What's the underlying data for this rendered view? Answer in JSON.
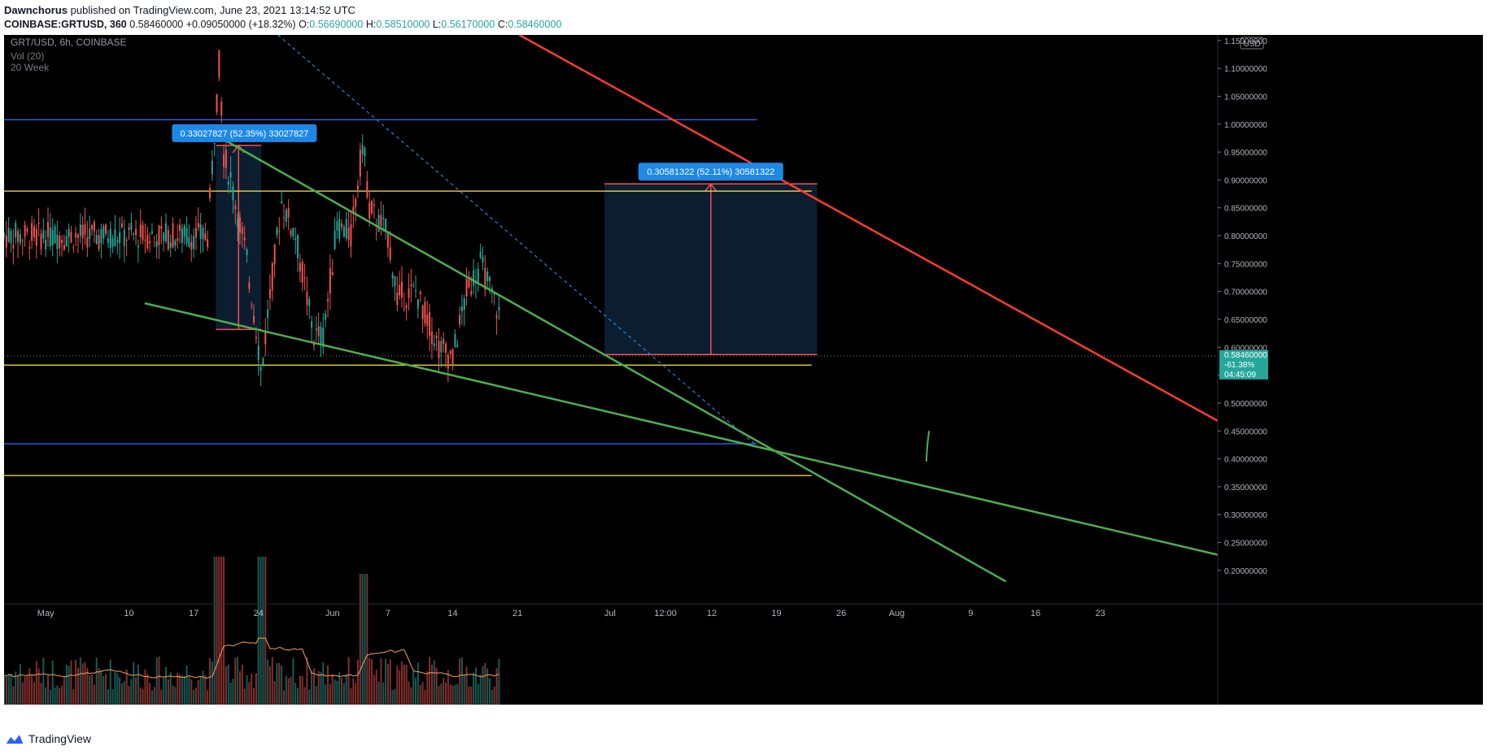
{
  "header": {
    "author": "Dawnchorus",
    "published": "published on TradingView.com, June 23, 2021 13:14:52 UTC",
    "symbol": "COINBASE:GRTUSD",
    "interval": "360",
    "last": "0.58460000",
    "change": "+0.09050000 (+18.32%)",
    "o_label": "O:",
    "o_value": "0.56690000",
    "h_label": "H:",
    "h_value": "0.58510000",
    "l_label": "L:",
    "l_value": "0.56170000",
    "c_label": "C:",
    "c_value": "0.58460000"
  },
  "legend": {
    "title": "GRT/USD, 6h, COINBASE",
    "volume": "Vol (20)",
    "ma": "20 Week"
  },
  "footer": {
    "brand": "TradingView"
  },
  "colors": {
    "background": "#000000",
    "up": "#26a69a",
    "down": "#ef5350",
    "trendline": "#4caf50",
    "resistance": "#ff3b30",
    "level_yellow": "#ffeb3b",
    "level_blue": "#2962ff",
    "measure": "#1e88e5",
    "vol_ma": "#f0a060"
  },
  "chart_data": {
    "type": "candlestick",
    "symbol": "GRT/USD",
    "timeframe": "6h",
    "exchange": "COINBASE",
    "currency": "USD",
    "ylim": [
      0.14,
      1.16
    ],
    "y_ticks": [
      "1.15000000",
      "1.10000000",
      "1.05000000",
      "1.00000000",
      "0.95000000",
      "0.90000000",
      "0.85000000",
      "0.80000000",
      "0.75000000",
      "0.70000000",
      "0.65000000",
      "0.60000000",
      "0.55000000",
      "0.50000000",
      "0.45000000",
      "0.40000000",
      "0.35000000",
      "0.30000000",
      "0.25000000",
      "0.20000000"
    ],
    "x_ticks": [
      "May",
      "10",
      "17",
      "24",
      "Jun",
      "7",
      "14",
      "21",
      "Jul",
      "12:00",
      "12",
      "19",
      "26",
      "Aug",
      "9",
      "16",
      "23"
    ],
    "x_tick_days": [
      0,
      9,
      16,
      23,
      31,
      37,
      44,
      51,
      61,
      67,
      72,
      79,
      86,
      92,
      100,
      107,
      114
    ],
    "xlim_days": [
      -4.5,
      126.7
    ],
    "date_origin": "2021-05-01",
    "last_price": {
      "value": "0.58460000",
      "change": "-61.38%",
      "countdown": "04:45:09",
      "price": 0.5846
    },
    "horizontal_levels": [
      {
        "name": "blue-upper",
        "price": 1.008,
        "from_day": -4.5,
        "to_day": 76.9
      },
      {
        "name": "yellow-upper",
        "price": 0.88,
        "from_day": -4.5,
        "to_day": 82.8
      },
      {
        "name": "yellow-middle",
        "price": 0.568,
        "from_day": -4.5,
        "to_day": 82.8
      },
      {
        "name": "blue-lower",
        "price": 0.427,
        "from_day": -4.5,
        "to_day": 76.9
      },
      {
        "name": "yellow-lower",
        "price": 0.37,
        "from_day": -4.5,
        "to_day": 82.8
      }
    ],
    "trendlines": [
      {
        "name": "falling-wedge-top",
        "p1": [
          19.3,
          0.972
        ],
        "p2": [
          103.8,
          0.18
        ]
      },
      {
        "name": "falling-wedge-bottom",
        "p1": [
          10.7,
          0.679
        ],
        "p2": [
          126.7,
          0.228
        ]
      },
      {
        "name": "resistance-red",
        "p1": [
          51.2,
          1.16
        ],
        "p2": [
          126.7,
          0.468
        ]
      },
      {
        "name": "projection-dashed",
        "p1": [
          25.1,
          1.16
        ],
        "p2": [
          76.9,
          0.423
        ]
      }
    ],
    "measurements": [
      {
        "label": "0.33027827 (52.35%) 33027827",
        "from_day": 18.4,
        "to_day": 23.3,
        "low": 0.632,
        "high": 0.962
      },
      {
        "label": "0.30581322 (52.11%) 30581322",
        "from_day": 60.4,
        "to_day": 83.4,
        "low": 0.587,
        "high": 0.893
      }
    ],
    "ohlc": [
      [
        0.82,
        0.85,
        0.78,
        0.81
      ],
      [
        0.81,
        0.84,
        0.77,
        0.8
      ],
      [
        0.8,
        0.83,
        0.76,
        0.79
      ],
      [
        0.79,
        0.82,
        0.75,
        0.78
      ],
      [
        0.78,
        0.81,
        0.74,
        0.77
      ],
      [
        0.77,
        0.8,
        0.73,
        0.76
      ],
      [
        0.76,
        0.79,
        0.72,
        0.75
      ],
      [
        0.75,
        0.78,
        0.71,
        0.74
      ],
      [
        0.74,
        0.77,
        0.7,
        0.73
      ],
      [
        0.73,
        0.76,
        0.69,
        0.72
      ],
      [
        0.72,
        0.75,
        0.68,
        0.71
      ],
      [
        0.71,
        0.74,
        0.67,
        0.7
      ]
    ],
    "candle_note_omitted": "series rendered from generated path",
    "volume_ma": "20"
  }
}
